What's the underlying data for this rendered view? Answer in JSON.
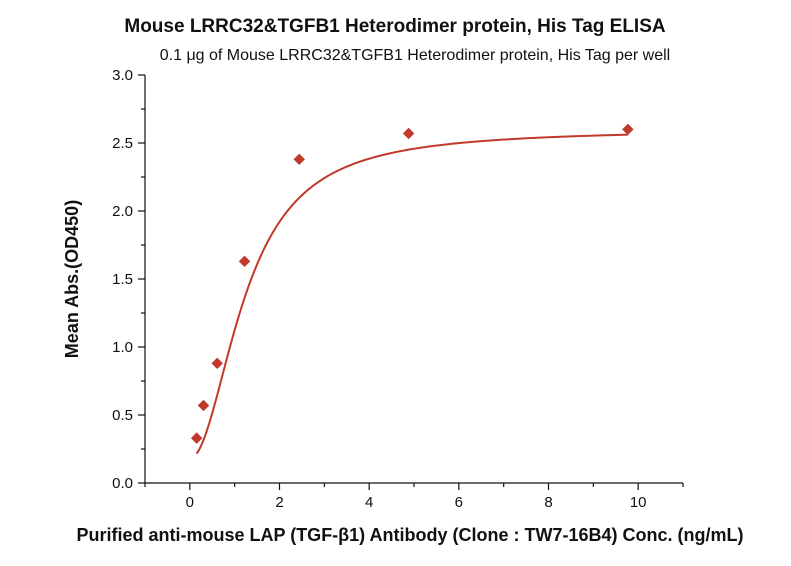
{
  "chart_data": {
    "type": "scatter",
    "title": "Mouse LRRC32&TGFB1 Heterodimer protein, His Tag ELISA",
    "subtitle": "0.1 μg of Mouse LRRC32&TGFB1 Heterodimer protein, His Tag per well",
    "xlabel": "Purified anti-mouse LAP (TGF-β1) Antibody (Clone : TW7-16B4) Conc. (ng/mL)",
    "ylabel": "Mean Abs.(OD450)",
    "xlim": [
      -1,
      11
    ],
    "ylim": [
      0,
      3.0
    ],
    "x_ticks": [
      0,
      2,
      4,
      6,
      8,
      10
    ],
    "y_ticks": [
      0.0,
      0.5,
      1.0,
      1.5,
      2.0,
      2.5,
      3.0
    ],
    "x_tick_labels": [
      "0",
      "2",
      "4",
      "6",
      "8",
      "10"
    ],
    "y_tick_labels": [
      "0.0",
      "0.5",
      "1.0",
      "1.5",
      "2.0",
      "2.5",
      "3.0"
    ],
    "grid": false,
    "series": [
      {
        "color": "#c0392b",
        "marker": "diamond",
        "x": [
          0.153,
          0.305,
          0.61,
          1.22,
          2.44,
          4.88,
          9.77
        ],
        "y": [
          0.33,
          0.57,
          0.88,
          1.63,
          2.38,
          2.57,
          2.6
        ],
        "fit_curve": true
      }
    ]
  }
}
